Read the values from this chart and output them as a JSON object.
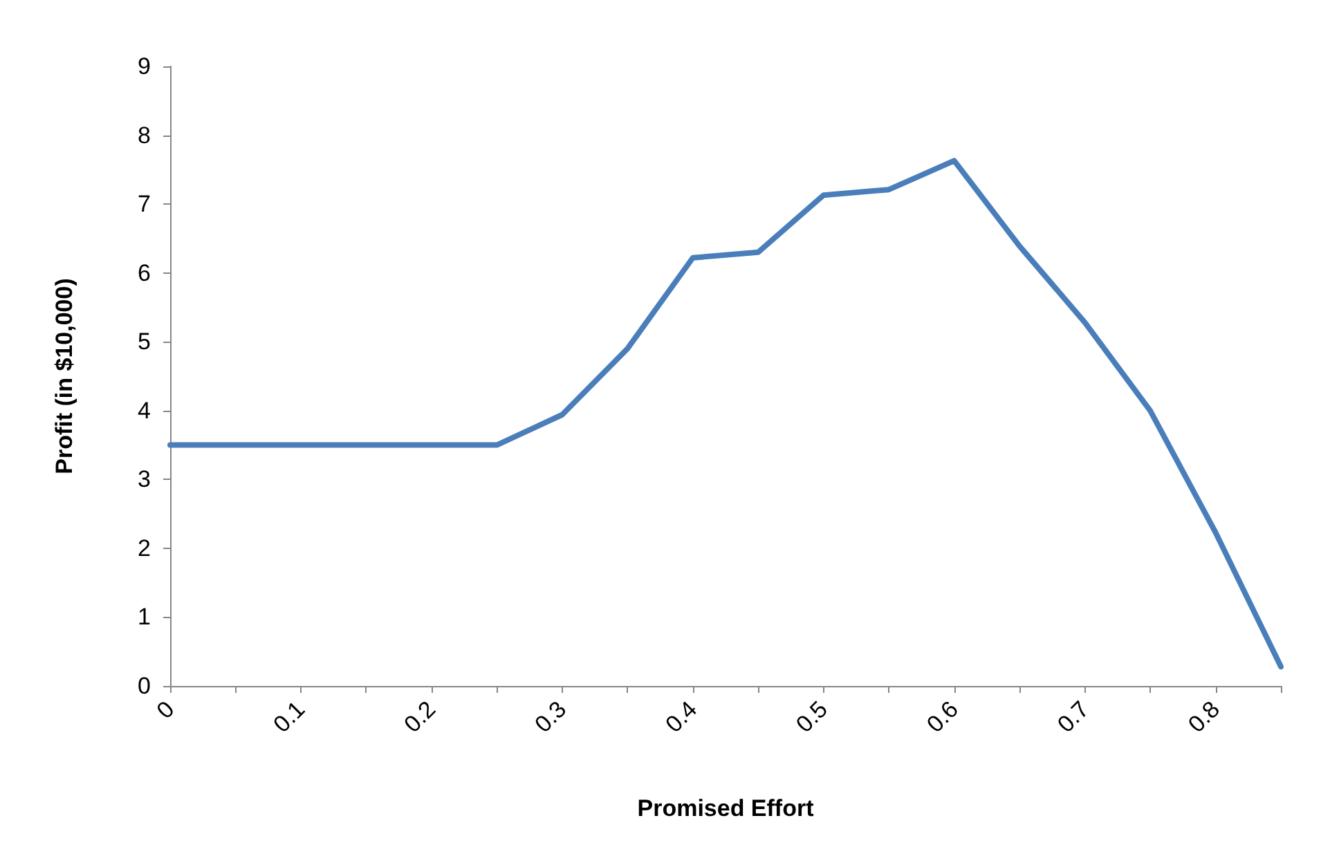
{
  "chart_data": {
    "type": "line",
    "xlabel": "Promised Effort",
    "ylabel": "Profit (in $10,000)",
    "x": [
      0,
      0.05,
      0.1,
      0.15,
      0.2,
      0.25,
      0.3,
      0.35,
      0.4,
      0.45,
      0.5,
      0.55,
      0.6,
      0.65,
      0.7,
      0.75,
      0.8,
      0.85
    ],
    "series": [
      {
        "color": "#4a7ebb",
        "values": [
          3.5,
          3.5,
          3.5,
          3.5,
          3.5,
          3.5,
          3.94,
          4.9,
          6.22,
          6.3,
          7.13,
          7.21,
          7.63,
          6.39,
          5.28,
          4.0,
          2.23,
          0.28
        ]
      }
    ],
    "xlim": [
      0,
      0.85
    ],
    "xticks": [
      0,
      {
        "value": 0.05,
        "label": null
      },
      0.1,
      {
        "value": 0.15,
        "label": null
      },
      0.2,
      {
        "value": 0.25,
        "label": null
      },
      0.3,
      {
        "value": 0.35,
        "label": null
      },
      0.4,
      {
        "value": 0.45,
        "label": null
      },
      0.5,
      {
        "value": 0.55,
        "label": null
      },
      0.6,
      {
        "value": 0.65,
        "label": null
      },
      0.7,
      {
        "value": 0.75,
        "label": null
      },
      0.8,
      {
        "value": 0.85,
        "label": null
      }
    ],
    "ylim": [
      0,
      9
    ],
    "yticks": [
      0,
      1,
      2,
      3,
      4,
      5,
      6,
      7,
      8,
      9
    ],
    "grid": false,
    "marker": "none",
    "line_style": "solid"
  }
}
